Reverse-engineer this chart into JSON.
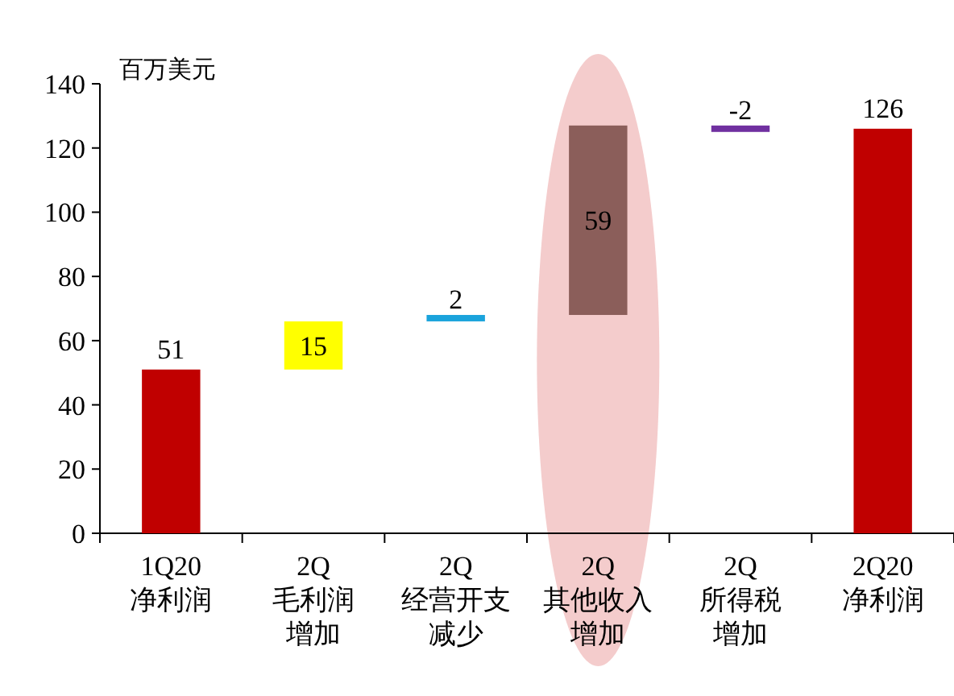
{
  "chart_data": {
    "type": "bar",
    "ylabel": "百万美元",
    "categories": [
      "1Q20净利润",
      "2Q毛利润增加",
      "2Q经营开支减少",
      "2Q其他收入增加",
      "2Q所得税增加",
      "2Q20净利润"
    ],
    "values": [
      51,
      15,
      2,
      59,
      -2,
      126
    ],
    "base": [
      0,
      51,
      66,
      68,
      127,
      0
    ],
    "colors": [
      "#c00000",
      "#ffff00",
      "#1aa3dc",
      "#8b5e5a",
      "#7030a0",
      "#c00000"
    ],
    "ylim": [
      0,
      140
    ],
    "yticks": [
      0,
      20,
      40,
      60,
      80,
      100,
      120,
      140
    ],
    "data_labels": true
  }
}
